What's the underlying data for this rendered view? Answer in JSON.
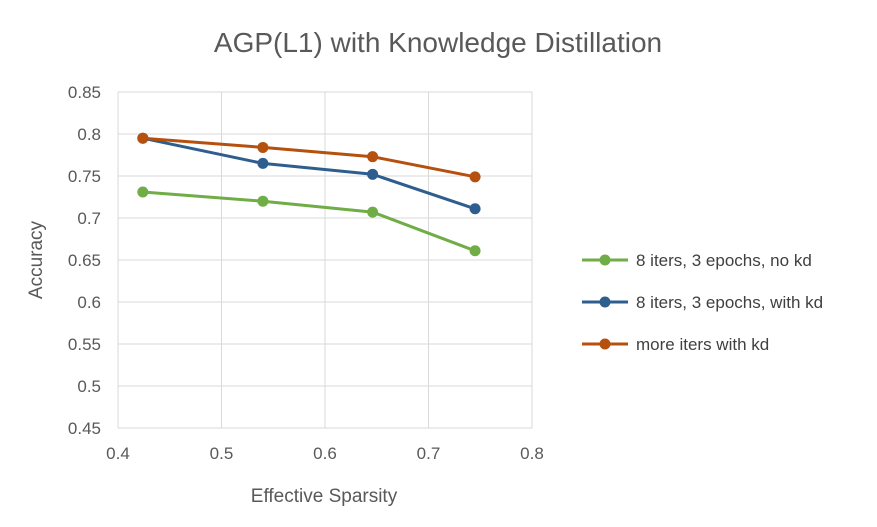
{
  "chart_data": {
    "type": "line",
    "title": "AGP(L1) with Knowledge Distillation",
    "xlabel": "Effective Sparsity",
    "ylabel": "Accuracy",
    "xlim": [
      0.4,
      0.8
    ],
    "ylim": [
      0.45,
      0.85
    ],
    "xticks": [
      0.4,
      0.5,
      0.6,
      0.7,
      0.8
    ],
    "yticks": [
      0.45,
      0.5,
      0.55,
      0.6,
      0.65,
      0.7,
      0.75,
      0.8,
      0.85
    ],
    "xtick_labels": [
      "0.4",
      "0.5",
      "0.6",
      "0.7",
      "0.8"
    ],
    "ytick_labels": [
      "0.45",
      "0.5",
      "0.55",
      "0.6",
      "0.65",
      "0.7",
      "0.75",
      "0.8",
      "0.85"
    ],
    "grid": true,
    "legend_position": "right",
    "series": [
      {
        "name": "8 iters, 3 epochs, no kd",
        "color": "#70AD47",
        "x": [
          0.424,
          0.54,
          0.646,
          0.745
        ],
        "y": [
          0.731,
          0.72,
          0.707,
          0.661
        ]
      },
      {
        "name": "8 iters, 3 epochs, with kd",
        "color": "#2E5E8E",
        "x": [
          0.424,
          0.54,
          0.646,
          0.745
        ],
        "y": [
          0.795,
          0.765,
          0.752,
          0.711
        ]
      },
      {
        "name": "more iters with kd",
        "color": "#B5500F",
        "x": [
          0.424,
          0.54,
          0.646,
          0.745
        ],
        "y": [
          0.795,
          0.784,
          0.773,
          0.749
        ]
      }
    ]
  }
}
